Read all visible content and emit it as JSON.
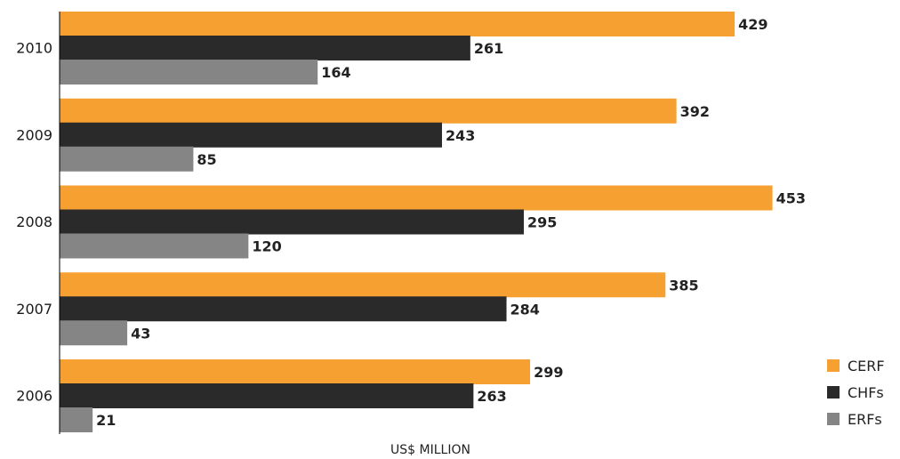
{
  "chart_data": {
    "type": "bar",
    "orientation": "horizontal",
    "categories": [
      "2010",
      "2009",
      "2008",
      "2007",
      "2006"
    ],
    "series": [
      {
        "name": "CERF",
        "values": [
          429,
          392,
          453,
          385,
          299
        ],
        "color": "#F5A030"
      },
      {
        "name": "CHFs",
        "values": [
          261,
          243,
          295,
          284,
          263
        ],
        "color": "#2A2A2A"
      },
      {
        "name": "ERFs",
        "values": [
          164,
          85,
          120,
          43,
          21
        ],
        "color": "#858585"
      }
    ],
    "title": "",
    "xlabel": "US$ MILLION",
    "ylabel": "",
    "xlim": [
      0,
      540
    ],
    "grid": false,
    "legend": {
      "position": "bottom-right",
      "entries": [
        "CERF",
        "CHFs",
        "ERFs"
      ]
    }
  }
}
